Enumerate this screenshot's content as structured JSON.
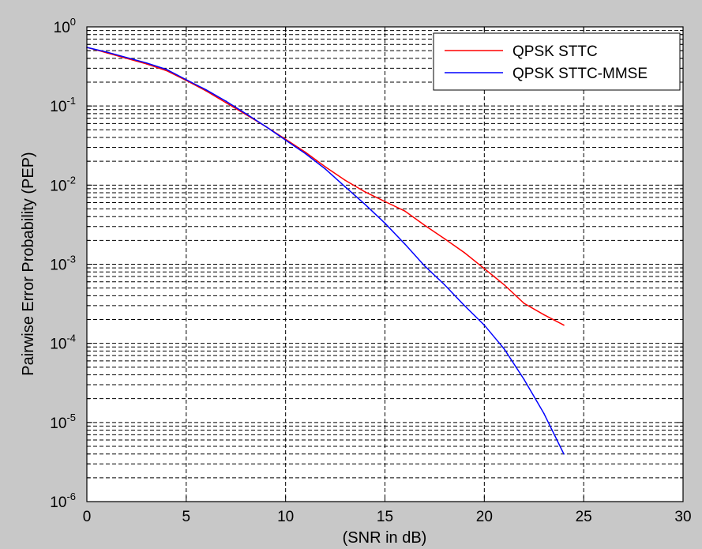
{
  "chart_data": {
    "type": "line",
    "title": "",
    "xlabel": "(SNR in dB)",
    "ylabel": "Pairwise Error Probability (PEP)",
    "xlim": [
      0,
      30
    ],
    "ylim": [
      1e-06,
      1
    ],
    "yscale": "log",
    "grid": true,
    "legend_position": "top-right",
    "x_ticks": [
      {
        "value": 0,
        "label": "0"
      },
      {
        "value": 5,
        "label": "5"
      },
      {
        "value": 10,
        "label": "10"
      },
      {
        "value": 15,
        "label": "15"
      },
      {
        "value": 20,
        "label": "20"
      },
      {
        "value": 25,
        "label": "25"
      },
      {
        "value": 30,
        "label": "30"
      }
    ],
    "y_ticks": [
      {
        "value": 1,
        "base": "10",
        "exp": "0"
      },
      {
        "value": 0.1,
        "base": "10",
        "exp": "-1"
      },
      {
        "value": 0.01,
        "base": "10",
        "exp": "-2"
      },
      {
        "value": 0.001,
        "base": "10",
        "exp": "-3"
      },
      {
        "value": 0.0001,
        "base": "10",
        "exp": "-4"
      },
      {
        "value": 1e-05,
        "base": "10",
        "exp": "-5"
      },
      {
        "value": 1e-06,
        "base": "10",
        "exp": "-6"
      }
    ],
    "series": [
      {
        "name": "QPSK STTC",
        "color": "#ff0000",
        "x": [
          0,
          1,
          2,
          3,
          4,
          5,
          6,
          7,
          8,
          9,
          10,
          11,
          12,
          13,
          14,
          15,
          16,
          17,
          18,
          19,
          20,
          21,
          22,
          23,
          24
        ],
        "y": [
          0.55,
          0.47,
          0.4,
          0.34,
          0.28,
          0.21,
          0.155,
          0.11,
          0.078,
          0.055,
          0.038,
          0.026,
          0.017,
          0.0115,
          0.0082,
          0.0062,
          0.0047,
          0.0031,
          0.0021,
          0.0014,
          0.00088,
          0.00055,
          0.00032,
          0.00023,
          0.00017
        ]
      },
      {
        "name": "QPSK STTC-MMSE",
        "color": "#0000ff",
        "x": [
          0,
          1,
          2,
          3,
          4,
          5,
          6,
          7,
          8,
          9,
          10,
          11,
          12,
          13,
          14,
          15,
          16,
          17,
          18,
          19,
          20,
          21,
          22,
          23,
          24
        ],
        "y": [
          0.55,
          0.48,
          0.41,
          0.35,
          0.29,
          0.215,
          0.16,
          0.115,
          0.08,
          0.055,
          0.037,
          0.025,
          0.016,
          0.0095,
          0.0057,
          0.0033,
          0.0018,
          0.00095,
          0.00055,
          0.0003,
          0.00017,
          8.5e-05,
          3.5e-05,
          1.3e-05,
          4e-06
        ]
      }
    ]
  }
}
